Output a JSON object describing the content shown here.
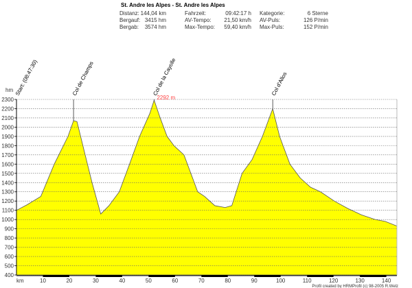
{
  "header": {
    "title": "St. Andre les Alpes - St. Andre les Alpes",
    "stats": [
      [
        {
          "label": "Distanz:",
          "value": "144,04 km"
        },
        {
          "label": "Fahrzeit:",
          "value": "09:42:17 h"
        },
        {
          "label": "Kategorie:",
          "value": "6 Sterne"
        }
      ],
      [
        {
          "label": "Bergauf:",
          "value": "3415 hm"
        },
        {
          "label": "AV-Tempo:",
          "value": "21,50 km/h"
        },
        {
          "label": "AV-Puls:",
          "value": "126 P/min"
        }
      ],
      [
        {
          "label": "Bergab:",
          "value": "3574 hm"
        },
        {
          "label": "Max-Tempo:",
          "value": "59,40 km/h"
        },
        {
          "label": "Max-Puls:",
          "value": "152 P/min"
        }
      ]
    ]
  },
  "chart_data": {
    "type": "area",
    "title": "St. Andre les Alpes - St. Andre les Alpes",
    "xlabel": "km",
    "ylabel": "hm",
    "xlim": [
      0,
      144
    ],
    "ylim": [
      400,
      2300
    ],
    "xticks": [
      10,
      20,
      30,
      40,
      50,
      60,
      70,
      80,
      90,
      100,
      110,
      120,
      130,
      140
    ],
    "yticks": [
      400,
      500,
      600,
      700,
      800,
      900,
      1000,
      1100,
      1200,
      1300,
      1400,
      1500,
      1600,
      1700,
      1800,
      1900,
      2000,
      2100,
      2200,
      2300
    ],
    "grid": true,
    "fill_color": "#ffff00",
    "x": [
      0,
      4,
      9.2,
      14.3,
      19.5,
      21.6,
      22.9,
      26,
      28.6,
      31.9,
      35,
      38.9,
      42.8,
      46.6,
      50.5,
      52.1,
      54.4,
      57,
      59.6,
      63.4,
      66,
      68.6,
      71.2,
      75.1,
      79,
      81.5,
      85.4,
      89.2,
      93.1,
      97,
      99.6,
      103.5,
      107.4,
      111.3,
      115.1,
      120.3,
      125.4,
      130.6,
      135.8,
      139.6,
      144
    ],
    "y": [
      1100,
      1160,
      1250,
      1600,
      1900,
      2070,
      2060,
      1700,
      1400,
      1060,
      1150,
      1300,
      1600,
      1900,
      2150,
      2292,
      2100,
      1900,
      1800,
      1700,
      1500,
      1300,
      1250,
      1150,
      1130,
      1150,
      1500,
      1650,
      1900,
      2200,
      1900,
      1600,
      1450,
      1350,
      1300,
      1200,
      1120,
      1050,
      1000,
      980,
      930
    ],
    "markers": [
      {
        "label": "Start: (08:47:30)",
        "km": 0,
        "elev": 1100
      },
      {
        "label": "Col de Champs",
        "km": 21.6,
        "elev": 2070
      },
      {
        "label": "Col de la Cayolle",
        "km": 52.1,
        "elev": 2292
      },
      {
        "label": "Col d'Allos",
        "km": 97,
        "elev": 2200
      }
    ],
    "annotations": [
      {
        "text": "2292 m",
        "km": 52.1,
        "elev": 2292,
        "color": "#ff4040"
      }
    ],
    "footer": "Profil created by HRMProfil (c) 98-2005 R.Welz"
  }
}
